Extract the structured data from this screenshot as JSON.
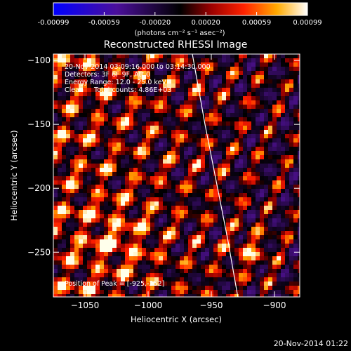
{
  "chart_data": {
    "type": "heatmap",
    "title": "Reconstructed RHESSI Image",
    "xlabel": "Heliocentric X (arcsec)",
    "ylabel": "Heliocentric Y (arcsec)",
    "xlim": [
      -1075,
      -880
    ],
    "ylim": [
      -285,
      -95
    ],
    "x_ticks": [
      -1050,
      -1000,
      -950,
      -900
    ],
    "y_ticks": [
      -100,
      -150,
      -200,
      -250
    ],
    "colorbar": {
      "range": [
        -0.00099,
        0.00099
      ],
      "ticks": [
        "-0.00099",
        "-0.00059",
        "-0.00020",
        "0.00020",
        "0.00059",
        "0.00099"
      ],
      "unit_label": "(photons cm⁻² s⁻¹ asec⁻²)"
    },
    "annotations": [
      "20-Nov-2014 03:09:16.000 to 03:14:30.000",
      "Detectors: 3F 6F 9F, Att 0",
      "Energy Range: 12.0 - 25.0 keV",
      "Clean     Total counts: 4.86E+03"
    ],
    "peak_label": "Position of Peak = [-925,-252]",
    "peak": {
      "x": -925,
      "y": -252
    },
    "limb": [
      [
        -965,
        -95
      ],
      [
        -955,
        -150
      ],
      [
        -945,
        -200
      ],
      [
        -937,
        -240
      ],
      [
        -929,
        -285
      ]
    ]
  },
  "footer": {
    "timestamp": "20-Nov-2014 01:22"
  },
  "colors": {
    "background": "#000000",
    "text": "#ffffff"
  }
}
